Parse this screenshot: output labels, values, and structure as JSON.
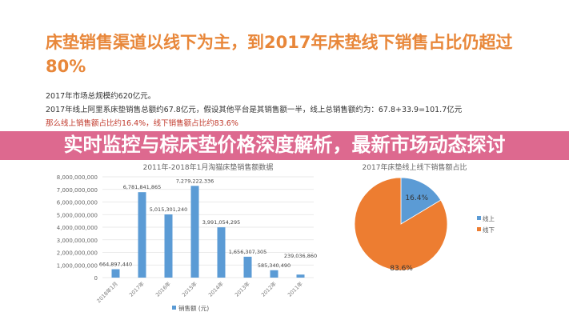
{
  "slide": {
    "heading": "床垫销售渠道以线下为主，到2017年床垫线下销售占比仍超过80%",
    "lines": [
      "2017年市场总规模约620亿元。",
      "2017年线上阿里系床垫销售总额约67.8亿元，假设其他平台是其销售额一半，线上总销售额约为：67.8+33.9=101.7亿元",
      "那么线上销售额占比约16.4%，线下销售额占比约83.6%"
    ]
  },
  "banner": {
    "title": "实时监控与棕床垫价格深度解析，最新市场动态探讨",
    "color": "#d94876"
  },
  "chart_data": [
    {
      "type": "bar",
      "title": "2011年-2018年1月淘猫床垫销售额数据",
      "categories": [
        "2018年1月",
        "2017年",
        "2016年",
        "2015年",
        "2014年",
        "2013年",
        "2012年",
        "2011年"
      ],
      "series": [
        {
          "name": "销售额 (元)",
          "values": [
            664897440,
            6781841865,
            5015301240,
            7279222336,
            3991054295,
            1656307305,
            585340490,
            239036860
          ],
          "color": "#5b9bd5"
        }
      ],
      "data_labels": [
        "664,897,440",
        "6,781,841,865",
        "5,015,301,240",
        "7,279,222,336",
        "3,991,054,295",
        "1,656,307,305",
        "585,340,490",
        "239,036,860"
      ],
      "yticks": [
        "0",
        "1,000,000,000",
        "2,000,000,000",
        "3,000,000,000",
        "4,000,000,000",
        "5,000,000,000",
        "6,000,000,000",
        "7,000,000,000",
        "8,000,000,000"
      ],
      "ylim": [
        0,
        8000000000
      ],
      "grid": true,
      "legend": "bottom"
    },
    {
      "type": "pie",
      "title": "2017年床垫线上线下销售额占比",
      "slices": [
        {
          "label": "线上",
          "value": 16.4,
          "text": "16.4%",
          "color": "#5b9bd5"
        },
        {
          "label": "线下",
          "value": 83.6,
          "text": "83.6%",
          "color": "#ed7d31"
        }
      ],
      "legend": "right"
    }
  ]
}
